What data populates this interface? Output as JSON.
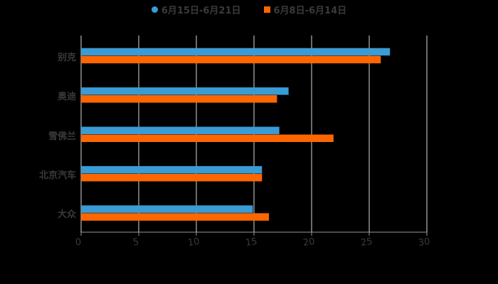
{
  "chart_data": {
    "type": "bar",
    "orientation": "horizontal",
    "title": "",
    "xlabel": "",
    "ylabel": "",
    "categories": [
      "别克",
      "奥迪",
      "雪佛兰",
      "北京汽车",
      "大众"
    ],
    "series": [
      {
        "name": "6月15日-6月21日",
        "color": "#3a9bd5",
        "values": [
          26.8,
          18.0,
          17.2,
          15.7,
          14.9
        ]
      },
      {
        "name": "6月8日-6月14日",
        "color": "#ff6600",
        "values": [
          26.0,
          17.0,
          21.9,
          15.7,
          16.3
        ]
      }
    ],
    "xlim": [
      0,
      30
    ],
    "x_ticks": [
      "0",
      "5",
      "10",
      "15",
      "20",
      "25",
      "30"
    ],
    "grid": true,
    "legend_position": "top"
  },
  "legend": {
    "series_0": "6月15日-6月21日",
    "series_1": "6月8日-6月14日"
  }
}
